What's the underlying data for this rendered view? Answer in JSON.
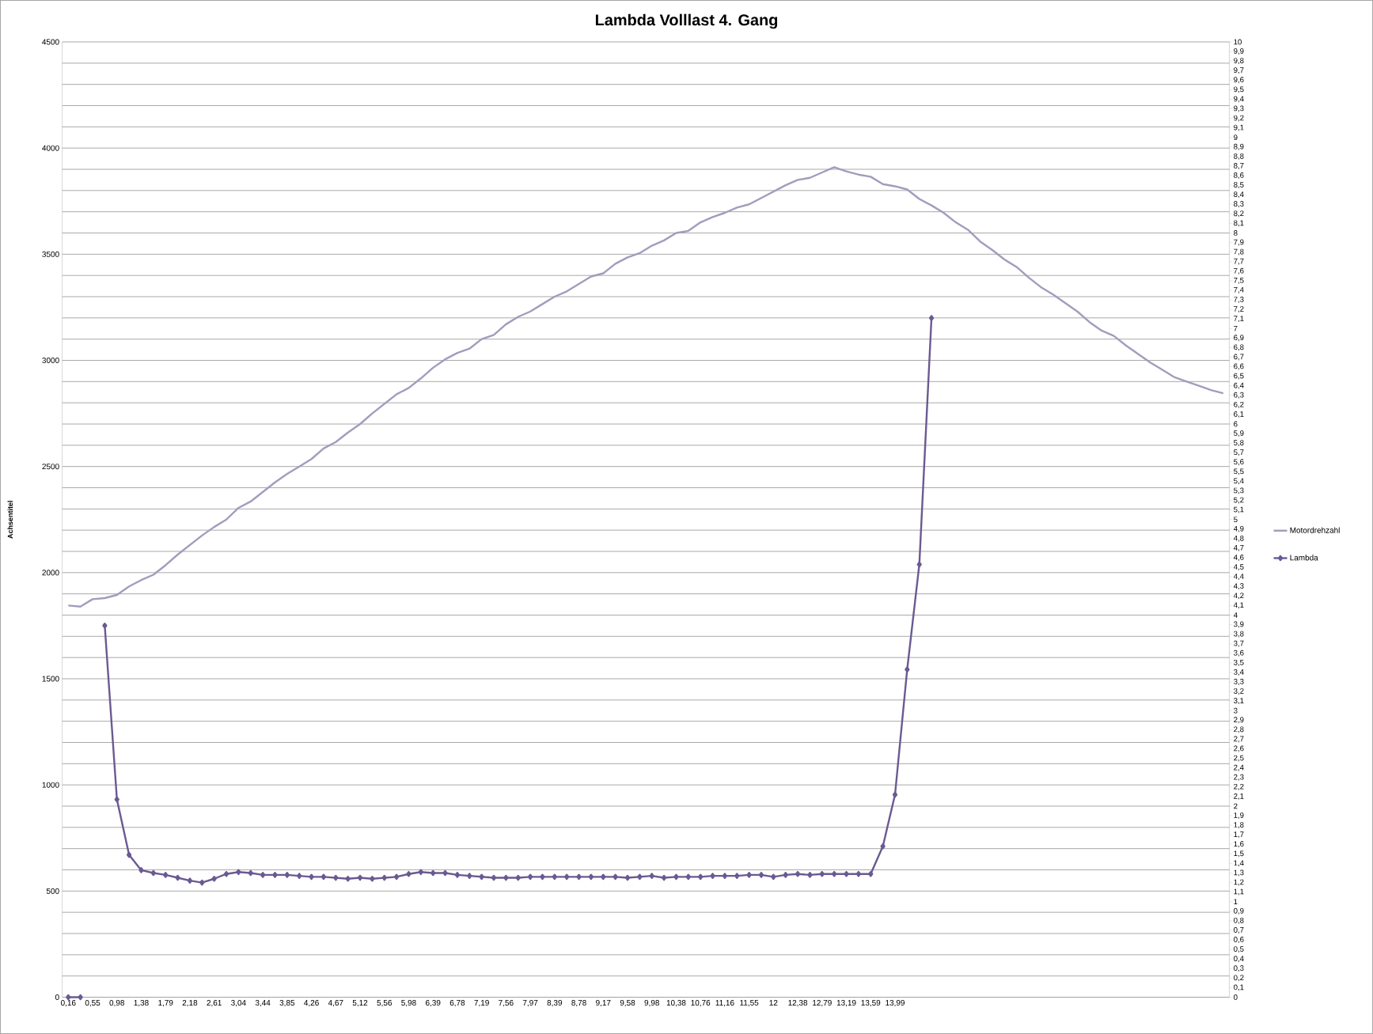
{
  "chart_data": {
    "type": "line",
    "title": "Lambda Volllast 4. Gang",
    "ylabel": "Achsentitel",
    "categories": [
      "0,16",
      null,
      "0,55",
      null,
      "0,98",
      null,
      "1,38",
      null,
      "1,79",
      null,
      "2,18",
      null,
      "2,61",
      null,
      "3,04",
      null,
      "3,44",
      null,
      "3,85",
      null,
      "4,26",
      null,
      "4,67",
      null,
      "5,12",
      null,
      "5,56",
      null,
      "5,98",
      null,
      "6,39",
      null,
      "6,78",
      null,
      "7,19",
      null,
      "7,56",
      null,
      "7,97",
      null,
      "8,39",
      null,
      "8,78",
      null,
      "9,17",
      null,
      "9,58",
      null,
      "9,98",
      null,
      "10,38",
      null,
      "10,76",
      null,
      "11,16",
      null,
      "11,55",
      null,
      "12",
      null,
      "12,38",
      null,
      "12,79",
      null,
      "13,19",
      null,
      "13,59",
      null,
      "13,99",
      null,
      null,
      null,
      null,
      null,
      null,
      null,
      null,
      null,
      null,
      null,
      null,
      null,
      null,
      null,
      null,
      null,
      null,
      null,
      null,
      null,
      null,
      null,
      null,
      null,
      null,
      null
    ],
    "series": [
      {
        "name": "Motordrehzahl",
        "color": "#a49bbd",
        "marker": "none",
        "values": [
          1845,
          1840,
          1875,
          1880,
          1895,
          1935,
          1965,
          1990,
          2035,
          2085,
          2130,
          2175,
          2215,
          2250,
          2305,
          2335,
          2380,
          2425,
          2465,
          2500,
          2535,
          2585,
          2615,
          2660,
          2700,
          2750,
          2795,
          2840,
          2870,
          2915,
          2965,
          3005,
          3035,
          3055,
          3100,
          3120,
          3170,
          3205,
          3230,
          3265,
          3300,
          3325,
          3360,
          3395,
          3410,
          3455,
          3485,
          3505,
          3540,
          3565,
          3600,
          3610,
          3650,
          3675,
          3695,
          3720,
          3735,
          3765,
          3795,
          3825,
          3850,
          3860,
          3885,
          3910,
          3890,
          3875,
          3865,
          3830,
          3820,
          3805,
          3760,
          3730,
          3695,
          3650,
          3615,
          3560,
          3520,
          3475,
          3440,
          3390,
          3345,
          3310,
          3270,
          3230,
          3180,
          3140,
          3115,
          3070,
          3030,
          2990,
          2955,
          2920,
          2900,
          2880,
          2860,
          2845
        ]
      },
      {
        "name": "Lambda",
        "color": "#6a5a92",
        "marker": "diamond",
        "axis": "y2",
        "values": [
          0,
          0,
          null,
          3.89,
          2.07,
          1.49,
          1.33,
          1.3,
          1.28,
          1.25,
          1.22,
          1.2,
          1.24,
          1.29,
          1.31,
          1.3,
          1.28,
          1.28,
          1.28,
          1.27,
          1.26,
          1.26,
          1.25,
          1.24,
          1.25,
          1.24,
          1.25,
          1.26,
          1.29,
          1.31,
          1.3,
          1.3,
          1.28,
          1.27,
          1.26,
          1.25,
          1.25,
          1.25,
          1.26,
          1.26,
          1.26,
          1.26,
          1.26,
          1.26,
          1.26,
          1.26,
          1.25,
          1.26,
          1.27,
          1.25,
          1.26,
          1.26,
          1.26,
          1.27,
          1.27,
          1.27,
          1.28,
          1.28,
          1.26,
          1.28,
          1.29,
          1.28,
          1.29,
          1.29,
          1.29,
          1.29,
          1.29,
          1.58,
          2.12,
          3.43,
          4.53,
          7.11,
          null,
          null,
          null,
          null,
          null,
          null,
          null,
          null,
          null,
          null,
          null,
          null,
          null,
          null,
          null,
          null,
          null,
          null,
          null,
          null,
          null,
          null,
          null,
          null
        ]
      }
    ],
    "ylim": [
      0,
      4500
    ],
    "yticks": [
      0,
      {
        "value": 100,
        "label": null
      },
      {
        "value": 200,
        "label": null
      },
      {
        "value": 300,
        "label": null
      },
      {
        "value": 400,
        "label": null
      },
      500,
      {
        "value": 600,
        "label": null
      },
      {
        "value": 700,
        "label": null
      },
      {
        "value": 800,
        "label": null
      },
      {
        "value": 900,
        "label": null
      },
      1000,
      {
        "value": 1100,
        "label": null
      },
      {
        "value": 1200,
        "label": null
      },
      {
        "value": 1300,
        "label": null
      },
      {
        "value": 1400,
        "label": null
      },
      1500,
      {
        "value": 1600,
        "label": null
      },
      {
        "value": 1700,
        "label": null
      },
      {
        "value": 1800,
        "label": null
      },
      {
        "value": 1900,
        "label": null
      },
      2000,
      {
        "value": 2100,
        "label": null
      },
      {
        "value": 2200,
        "label": null
      },
      {
        "value": 2300,
        "label": null
      },
      {
        "value": 2400,
        "label": null
      },
      2500,
      {
        "value": 2600,
        "label": null
      },
      {
        "value": 2700,
        "label": null
      },
      {
        "value": 2800,
        "label": null
      },
      {
        "value": 2900,
        "label": null
      },
      3000,
      {
        "value": 3100,
        "label": null
      },
      {
        "value": 3200,
        "label": null
      },
      {
        "value": 3300,
        "label": null
      },
      {
        "value": 3400,
        "label": null
      },
      3500,
      {
        "value": 3600,
        "label": null
      },
      {
        "value": 3700,
        "label": null
      },
      {
        "value": 3800,
        "label": null
      },
      {
        "value": 3900,
        "label": null
      },
      4000,
      {
        "value": 4100,
        "label": null
      },
      {
        "value": 4200,
        "label": null
      },
      {
        "value": 4300,
        "label": null
      },
      {
        "value": 4400,
        "label": null
      },
      4500
    ],
    "y2lim": [
      0,
      10
    ],
    "y2ticks": [
      0,
      {
        "value": 0.1,
        "label": "0,1"
      },
      {
        "value": 0.2,
        "label": "0,2"
      },
      {
        "value": 0.3,
        "label": "0,3"
      },
      {
        "value": 0.4,
        "label": "0,4"
      },
      {
        "value": 0.5,
        "label": "0,5"
      },
      {
        "value": 0.6,
        "label": "0,6"
      },
      {
        "value": 0.7,
        "label": "0,7"
      },
      {
        "value": 0.8,
        "label": "0,8"
      },
      {
        "value": 0.9,
        "label": "0,9"
      },
      1,
      {
        "value": 1.1,
        "label": "1,1"
      },
      {
        "value": 1.2,
        "label": "1,2"
      },
      {
        "value": 1.3,
        "label": "1,3"
      },
      {
        "value": 1.4,
        "label": "1,4"
      },
      {
        "value": 1.5,
        "label": "1,5"
      },
      {
        "value": 1.6,
        "label": "1,6"
      },
      {
        "value": 1.7,
        "label": "1,7"
      },
      {
        "value": 1.8,
        "label": "1,8"
      },
      {
        "value": 1.9,
        "label": "1,9"
      },
      2,
      {
        "value": 2.1,
        "label": "2,1"
      },
      {
        "value": 2.2,
        "label": "2,2"
      },
      {
        "value": 2.3,
        "label": "2,3"
      },
      {
        "value": 2.4,
        "label": "2,4"
      },
      {
        "value": 2.5,
        "label": "2,5"
      },
      {
        "value": 2.6,
        "label": "2,6"
      },
      {
        "value": 2.7,
        "label": "2,7"
      },
      {
        "value": 2.8,
        "label": "2,8"
      },
      {
        "value": 2.9,
        "label": "2,9"
      },
      3,
      {
        "value": 3.1,
        "label": "3,1"
      },
      {
        "value": 3.2,
        "label": "3,2"
      },
      {
        "value": 3.3,
        "label": "3,3"
      },
      {
        "value": 3.4,
        "label": "3,4"
      },
      {
        "value": 3.5,
        "label": "3,5"
      },
      {
        "value": 3.6,
        "label": "3,6"
      },
      {
        "value": 3.7,
        "label": "3,7"
      },
      {
        "value": 3.8,
        "label": "3,8"
      },
      {
        "value": 3.9,
        "label": "3,9"
      },
      4,
      {
        "value": 4.1,
        "label": "4,1"
      },
      {
        "value": 4.2,
        "label": "4,2"
      },
      {
        "value": 4.3,
        "label": "4,3"
      },
      {
        "value": 4.4,
        "label": "4,4"
      },
      {
        "value": 4.5,
        "label": "4,5"
      },
      {
        "value": 4.6,
        "label": "4,6"
      },
      {
        "value": 4.7,
        "label": "4,7"
      },
      {
        "value": 4.8,
        "label": "4,8"
      },
      {
        "value": 4.9,
        "label": "4,9"
      },
      5,
      {
        "value": 5.1,
        "label": "5,1"
      },
      {
        "value": 5.2,
        "label": "5,2"
      },
      {
        "value": 5.3,
        "label": "5,3"
      },
      {
        "value": 5.4,
        "label": "5,4"
      },
      {
        "value": 5.5,
        "label": "5,5"
      },
      {
        "value": 5.6,
        "label": "5,6"
      },
      {
        "value": 5.7,
        "label": "5,7"
      },
      {
        "value": 5.8,
        "label": "5,8"
      },
      {
        "value": 5.9,
        "label": "5,9"
      },
      6,
      {
        "value": 6.1,
        "label": "6,1"
      },
      {
        "value": 6.2,
        "label": "6,2"
      },
      {
        "value": 6.3,
        "label": "6,3"
      },
      {
        "value": 6.4,
        "label": "6,4"
      },
      {
        "value": 6.5,
        "label": "6,5"
      },
      {
        "value": 6.6,
        "label": "6,6"
      },
      {
        "value": 6.7,
        "label": "6,7"
      },
      {
        "value": 6.8,
        "label": "6,8"
      },
      {
        "value": 6.9,
        "label": "6,9"
      },
      7,
      {
        "value": 7.1,
        "label": "7,1"
      },
      {
        "value": 7.2,
        "label": "7,2"
      },
      {
        "value": 7.3,
        "label": "7,3"
      },
      {
        "value": 7.4,
        "label": "7,4"
      },
      {
        "value": 7.5,
        "label": "7,5"
      },
      {
        "value": 7.6,
        "label": "7,6"
      },
      {
        "value": 7.7,
        "label": "7,7"
      },
      {
        "value": 7.8,
        "label": "7,8"
      },
      {
        "value": 7.9,
        "label": "7,9"
      },
      8,
      {
        "value": 8.1,
        "label": "8,1"
      },
      {
        "value": 8.2,
        "label": "8,2"
      },
      {
        "value": 8.3,
        "label": "8,3"
      },
      {
        "value": 8.4,
        "label": "8,4"
      },
      {
        "value": 8.5,
        "label": "8,5"
      },
      {
        "value": 8.6,
        "label": "8,6"
      },
      {
        "value": 8.7,
        "label": "8,7"
      },
      {
        "value": 8.8,
        "label": "8,8"
      },
      {
        "value": 8.9,
        "label": "8,9"
      },
      9,
      {
        "value": 9.1,
        "label": "9,1"
      },
      {
        "value": 9.2,
        "label": "9,2"
      },
      {
        "value": 9.3,
        "label": "9,3"
      },
      {
        "value": 9.4,
        "label": "9,4"
      },
      {
        "value": 9.5,
        "label": "9,5"
      },
      {
        "value": 9.6,
        "label": "9,6"
      },
      {
        "value": 9.7,
        "label": "9,7"
      },
      {
        "value": 9.8,
        "label": "9,8"
      },
      {
        "value": 9.9,
        "label": "9,9"
      },
      10
    ],
    "grid": "y",
    "legend": "right"
  }
}
